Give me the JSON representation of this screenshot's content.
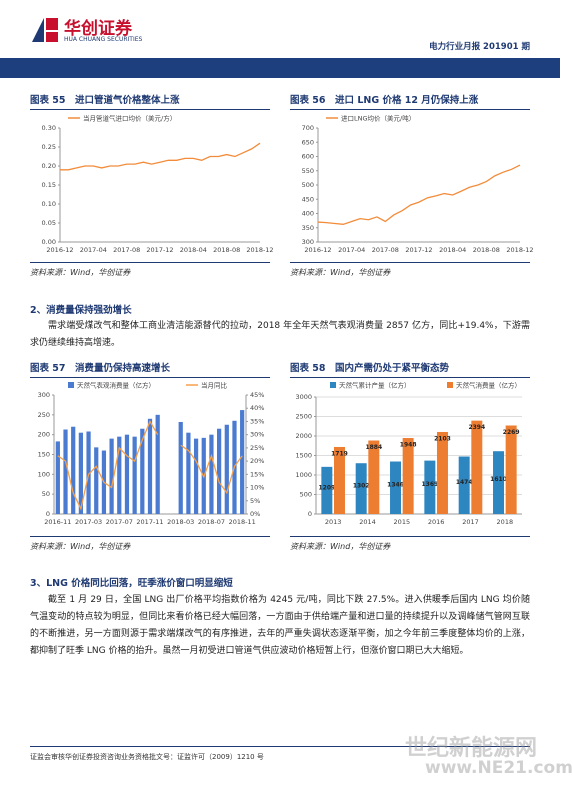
{
  "header": {
    "logo_cn": "华创证券",
    "logo_en": "HUA CHUANG SECURITIES",
    "report": "电力行业月报 201901 期"
  },
  "figures": [
    {
      "title": "图表 55　进口管道气价格整体上涨",
      "source": "资料来源：Wind，华创证券",
      "chart_data": {
        "type": "line",
        "categories": [
          "2016-12",
          null,
          null,
          null,
          "2017-04",
          null,
          null,
          null,
          "2017-08",
          null,
          null,
          null,
          "2017-12",
          null,
          null,
          null,
          "2018-04",
          null,
          null,
          null,
          "2018-08",
          null,
          null,
          null,
          "2018-12"
        ],
        "series": [
          {
            "name": "当月管道气进口均价（美元/方）",
            "color": "#f28c3a",
            "values": [
              0.19,
              0.19,
              0.195,
              0.2,
              0.2,
              0.195,
              0.2,
              0.2,
              0.205,
              0.205,
              0.21,
              0.205,
              0.21,
              0.215,
              0.215,
              0.22,
              0.22,
              0.215,
              0.225,
              0.225,
              0.23,
              0.225,
              0.235,
              0.245,
              0.26
            ]
          }
        ],
        "ylim": [
          0,
          0.3
        ],
        "yticks": [
          {
            "value": 0,
            "label": "0.00"
          },
          0.05,
          {
            "value": 0.1,
            "label": "0.10"
          },
          0.15,
          {
            "value": 0.2,
            "label": "0.20"
          },
          0.25,
          {
            "value": 0.3,
            "label": "0.30"
          }
        ],
        "grid": false
      }
    },
    {
      "title": "图表 56　进口 LNG 价格 12 月仍保持上涨",
      "source": "资料来源：Wind，华创证券",
      "chart_data": {
        "type": "line",
        "categories": [
          "2016-12",
          null,
          null,
          null,
          "2017-04",
          null,
          null,
          null,
          "2017-08",
          null,
          null,
          null,
          "2017-12",
          null,
          null,
          null,
          "2018-04",
          null,
          null,
          null,
          "2018-08",
          null,
          null,
          null,
          "2018-12"
        ],
        "series": [
          {
            "name": "进口LNG均价（美元/吨）",
            "color": "#f28c3a",
            "values": [
              370,
              368,
              365,
              362,
              372,
              382,
              378,
              388,
              372,
              395,
              410,
              430,
              440,
              455,
              462,
              470,
              465,
              478,
              492,
              500,
              512,
              532,
              545,
              555,
              570
            ]
          }
        ],
        "ylim": [
          300,
          700
        ],
        "yticks": [
          300,
          350,
          400,
          450,
          500,
          550,
          600,
          650,
          700
        ],
        "grid": false
      }
    },
    {
      "title": "图表 57　消费量仍保持高速增长",
      "source": "资料来源：Wind，华创证券",
      "chart_data": {
        "type": "bar",
        "categories": [
          "2016-11",
          null,
          null,
          null,
          "2017-03",
          null,
          null,
          null,
          "2017-07",
          null,
          null,
          null,
          "2017-11",
          null,
          null,
          null,
          "2018-03",
          null,
          null,
          null,
          "2018-07",
          null,
          null,
          null,
          "2018-11"
        ],
        "series": [
          {
            "name": "天然气表观消费量（亿方）",
            "color": "#4a7bd0",
            "type": "bar",
            "values": [
              183,
              213,
              220,
              205,
              208,
              168,
              160,
              190,
              195,
              200,
              195,
              215,
              240,
              250,
              0,
              0,
              232,
              205,
              190,
              192,
              200,
              215,
              225,
              235,
              262
            ]
          },
          {
            "name": "当月同比",
            "color": "#f5a04a",
            "type": "line",
            "axis": "y2",
            "values": [
              22,
              20,
              8,
              2,
              15,
              18,
              12,
              10,
              25,
              22,
              20,
              28,
              35,
              30,
              null,
              null,
              26,
              24,
              20,
              14,
              22,
              12,
              8,
              18,
              22
            ]
          }
        ],
        "ylim": [
          0,
          300
        ],
        "yticks": [
          0,
          50,
          100,
          150,
          200,
          250,
          300
        ],
        "y2lim": [
          0,
          45
        ],
        "y2ticks": [
          {
            "value": 0,
            "label": "0%"
          },
          {
            "value": 5,
            "label": "5%"
          },
          {
            "value": 10,
            "label": "10%"
          },
          {
            "value": 15,
            "label": "15%"
          },
          {
            "value": 20,
            "label": "20%"
          },
          {
            "value": 25,
            "label": "25%"
          },
          {
            "value": 30,
            "label": "30%"
          },
          {
            "value": 35,
            "label": "35%"
          },
          {
            "value": 40,
            "label": "40%"
          },
          {
            "value": 45,
            "label": "45%"
          }
        ],
        "grid": false
      }
    },
    {
      "title": "图表 58　国内产需仍处于紧平衡态势",
      "source": "资料来源：Wind，华创证券",
      "chart_data": {
        "type": "bar",
        "categories": [
          "2013",
          "2014",
          "2015",
          "2016",
          "2017",
          "2018"
        ],
        "series": [
          {
            "name": "天然气累计产量（亿方）",
            "color": "#2e86c1",
            "values": [
              1209,
              1302,
              1346,
              1369,
              1474,
              1610
            ]
          },
          {
            "name": "天然气消费量（亿方）",
            "color": "#ed7d31",
            "values": [
              1719,
              1884,
              1948,
              2103,
              2394,
              2269
            ]
          }
        ],
        "ylim": [
          0,
          3000
        ],
        "yticks": [
          0,
          500,
          1000,
          1500,
          2000,
          2500,
          3000
        ],
        "grid": true,
        "data_labels": true
      }
    }
  ],
  "sections": [
    {
      "heading": "2、消费量保持强劲增长",
      "text": "需求端受煤改气和整体工商业清洁能源替代的拉动，2018 年全年天然气表观消费量 2857 亿方，同比+19.4%，下游需求仍继续维持高增速。"
    },
    {
      "heading": "3、LNG 价格同比回落，旺季涨价窗口明显缩短",
      "text": "截至 1 月 29 日，全国 LNG 出厂价格平均指数价格为 4245 元/吨，同比下跌 27.5%。进入供暖季后国内 LNG 均价随气温变动的特点较为明显，但同比来看价格已经大幅回落，一方面由于供给端产量和进口量的持续提升以及调峰储气管网互联的不断推进，另一方面则源于需求端煤改气的有序推进，去年的严重失调状态逐渐平衡，加之今年前三季度整体均价的上涨，都抑制了旺季 LNG 价格的抬升。虽然一月初受进口管道气供应波动价格短暂上行，但涨价窗口期已大大缩短。"
    }
  ],
  "footer": "证监会审核华创证券投资咨询业务资格批文号：证监许可（2009）1210 号",
  "watermark": {
    "name": "世纪新能源网",
    "url": "www.NE21.com"
  }
}
